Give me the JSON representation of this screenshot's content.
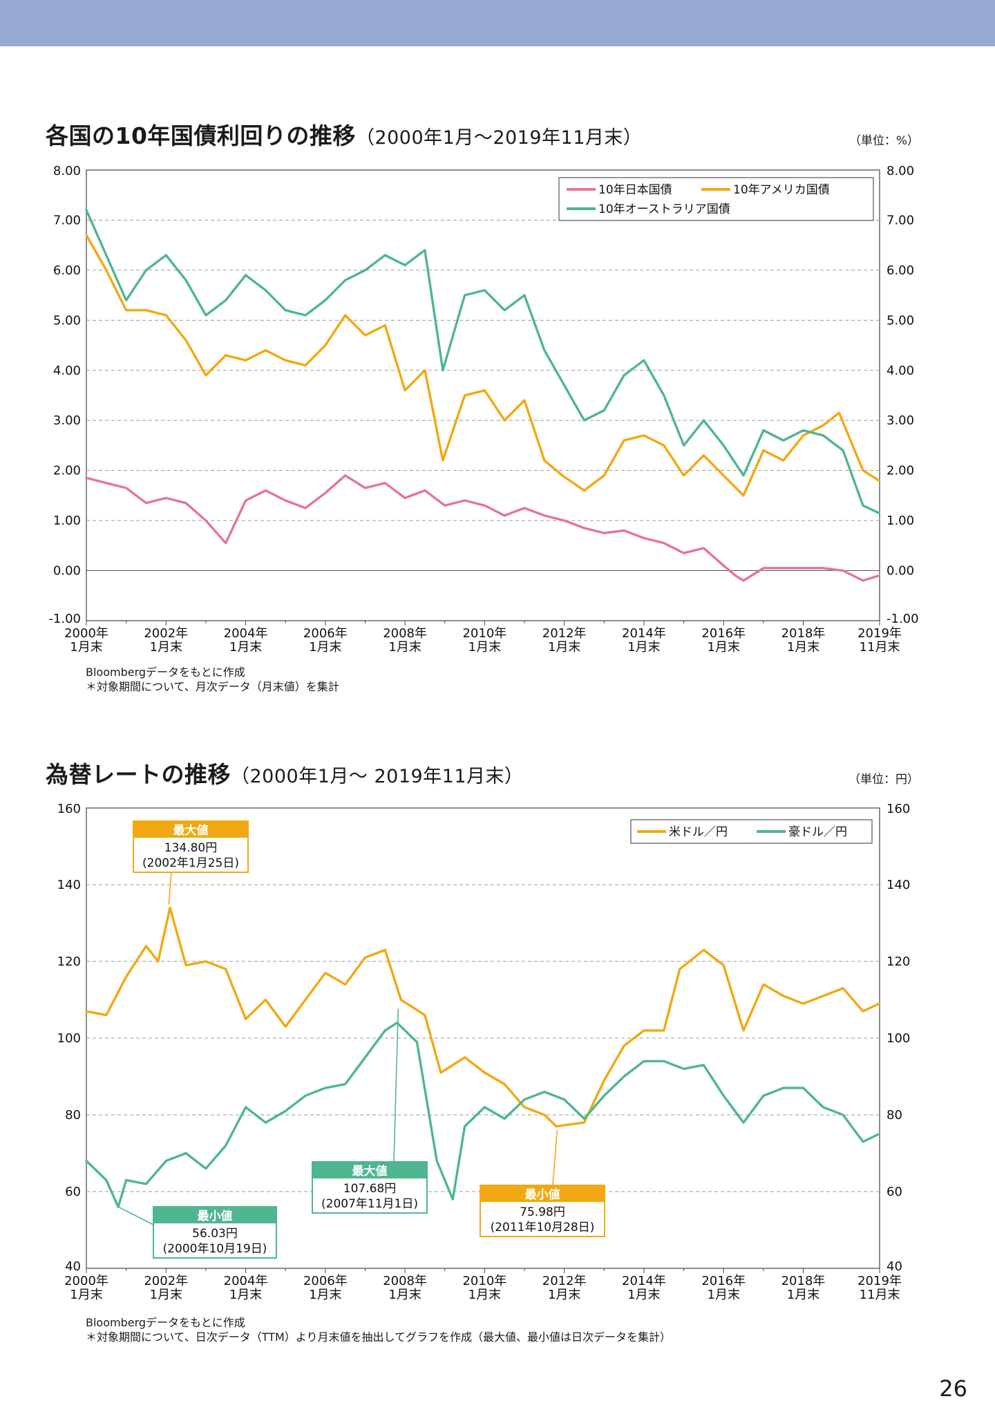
{
  "page_number": "26",
  "colors": {
    "header_band": "#95a9d1",
    "jp": "#e57594",
    "us": "#f2a812",
    "au": "#4fb68f"
  },
  "chart1": {
    "title_main": "各国の10年国債利回りの推移",
    "title_sub": "（2000年1月～2019年11月末）",
    "unit": "（単位：%）",
    "notes": [
      "Bloombergデータをもとに作成",
      "＊対象期間について、月次データ（月末値）を集計"
    ]
  },
  "chart2": {
    "title_main": "為替レートの推移",
    "title_sub": "（2000年1月～ 2019年11月末）",
    "unit": "（単位：円）",
    "notes": [
      "Bloombergデータをもとに作成",
      "＊対象期間について、日次データ（TTM）より月末値を抽出してグラフを作成（最大値、最小値は日次データを集計）"
    ]
  },
  "chart_data": [
    {
      "type": "line",
      "title": "各国の10年国債利回りの推移（2000年1月～2019年11月末）",
      "unit": "%",
      "ylim": [
        -1,
        8
      ],
      "y_ticks": [
        "8.00",
        "7.00",
        "6.00",
        "5.00",
        "4.00",
        "3.00",
        "2.00",
        "1.00",
        "0.00",
        "-1.00"
      ],
      "x_ticks": [
        [
          "2000年",
          "1月末"
        ],
        [
          "2002年",
          "1月末"
        ],
        [
          "2004年",
          "1月末"
        ],
        [
          "2006年",
          "1月末"
        ],
        [
          "2008年",
          "1月末"
        ],
        [
          "2010年",
          "1月末"
        ],
        [
          "2012年",
          "1月末"
        ],
        [
          "2014年",
          "1月末"
        ],
        [
          "2016年",
          "1月末"
        ],
        [
          "2018年",
          "1月末"
        ],
        [
          "2019年",
          "11月末"
        ]
      ],
      "grid": true,
      "legend_position": "top-right",
      "series": [
        {
          "name": "10年日本国債",
          "color": "#e57594",
          "x": [
            2000.0,
            2000.5,
            2001.0,
            2001.5,
            2002.0,
            2002.5,
            2003.0,
            2003.5,
            2004.0,
            2004.5,
            2005.0,
            2005.5,
            2006.0,
            2006.5,
            2007.0,
            2007.5,
            2008.0,
            2008.5,
            2009.0,
            2009.5,
            2010.0,
            2010.5,
            2011.0,
            2011.5,
            2012.0,
            2012.5,
            2013.0,
            2013.5,
            2014.0,
            2014.5,
            2015.0,
            2015.5,
            2016.0,
            2016.3,
            2016.5,
            2017.0,
            2017.5,
            2018.0,
            2018.5,
            2019.0,
            2019.5,
            2019.9
          ],
          "y": [
            1.85,
            1.75,
            1.65,
            1.35,
            1.45,
            1.35,
            1.0,
            0.55,
            1.4,
            1.6,
            1.4,
            1.25,
            1.55,
            1.9,
            1.65,
            1.75,
            1.45,
            1.6,
            1.3,
            1.4,
            1.3,
            1.1,
            1.25,
            1.1,
            1.0,
            0.85,
            0.75,
            0.8,
            0.65,
            0.55,
            0.35,
            0.45,
            0.1,
            -0.1,
            -0.2,
            0.05,
            0.05,
            0.05,
            0.05,
            0.0,
            -0.2,
            -0.1
          ]
        },
        {
          "name": "10年アメリカ国債",
          "color": "#f2a812",
          "x": [
            2000.0,
            2000.5,
            2001.0,
            2001.5,
            2002.0,
            2002.5,
            2003.0,
            2003.5,
            2004.0,
            2004.5,
            2005.0,
            2005.5,
            2006.0,
            2006.5,
            2007.0,
            2007.5,
            2008.0,
            2008.5,
            2008.95,
            2009.5,
            2010.0,
            2010.5,
            2011.0,
            2011.5,
            2011.95,
            2012.5,
            2013.0,
            2013.5,
            2014.0,
            2014.5,
            2015.0,
            2015.5,
            2016.0,
            2016.5,
            2017.0,
            2017.5,
            2018.0,
            2018.5,
            2018.9,
            2019.5,
            2019.9
          ],
          "y": [
            6.7,
            6.0,
            5.2,
            5.2,
            5.1,
            4.6,
            3.9,
            4.3,
            4.2,
            4.4,
            4.2,
            4.1,
            4.5,
            5.1,
            4.7,
            4.9,
            3.6,
            4.0,
            2.2,
            3.5,
            3.6,
            3.0,
            3.4,
            2.2,
            1.9,
            1.6,
            1.9,
            2.6,
            2.7,
            2.5,
            1.9,
            2.3,
            1.9,
            1.5,
            2.4,
            2.2,
            2.7,
            2.9,
            3.15,
            2.0,
            1.8
          ]
        },
        {
          "name": "10年オーストラリア国債",
          "color": "#4fb68f",
          "x": [
            2000.0,
            2000.5,
            2001.0,
            2001.5,
            2002.0,
            2002.5,
            2003.0,
            2003.5,
            2004.0,
            2004.5,
            2005.0,
            2005.5,
            2006.0,
            2006.5,
            2007.0,
            2007.5,
            2008.0,
            2008.5,
            2008.95,
            2009.5,
            2010.0,
            2010.5,
            2011.0,
            2011.5,
            2012.0,
            2012.5,
            2013.0,
            2013.5,
            2014.0,
            2014.5,
            2015.0,
            2015.5,
            2016.0,
            2016.5,
            2017.0,
            2017.5,
            2018.0,
            2018.5,
            2019.0,
            2019.5,
            2019.9
          ],
          "y": [
            7.2,
            6.3,
            5.4,
            6.0,
            6.3,
            5.8,
            5.1,
            5.4,
            5.9,
            5.6,
            5.2,
            5.1,
            5.4,
            5.8,
            6.0,
            6.3,
            6.1,
            6.4,
            4.0,
            5.5,
            5.6,
            5.2,
            5.5,
            4.4,
            3.7,
            3.0,
            3.2,
            3.9,
            4.2,
            3.5,
            2.5,
            3.0,
            2.5,
            1.9,
            2.8,
            2.6,
            2.8,
            2.7,
            2.4,
            1.3,
            1.15
          ]
        }
      ]
    },
    {
      "type": "line",
      "title": "為替レートの推移（2000年1月～ 2019年11月末）",
      "unit": "円",
      "ylim": [
        40,
        160
      ],
      "y_ticks": [
        "160",
        "140",
        "120",
        "100",
        "80",
        "60",
        "40"
      ],
      "x_ticks": [
        [
          "2000年",
          "1月末"
        ],
        [
          "2002年",
          "1月末"
        ],
        [
          "2004年",
          "1月末"
        ],
        [
          "2006年",
          "1月末"
        ],
        [
          "2008年",
          "1月末"
        ],
        [
          "2010年",
          "1月末"
        ],
        [
          "2012年",
          "1月末"
        ],
        [
          "2014年",
          "1月末"
        ],
        [
          "2016年",
          "1月末"
        ],
        [
          "2018年",
          "1月末"
        ],
        [
          "2019年",
          "11月末"
        ]
      ],
      "grid": true,
      "legend_position": "top-right",
      "series": [
        {
          "name": "米ドル／円",
          "color": "#f2a812",
          "x": [
            2000.0,
            2000.5,
            2001.0,
            2001.5,
            2001.8,
            2002.1,
            2002.5,
            2003.0,
            2003.5,
            2004.0,
            2004.5,
            2005.0,
            2005.5,
            2006.0,
            2006.5,
            2007.0,
            2007.5,
            2007.9,
            2008.5,
            2008.9,
            2009.5,
            2010.0,
            2010.5,
            2011.0,
            2011.5,
            2011.8,
            2012.5,
            2013.0,
            2013.5,
            2014.0,
            2014.5,
            2014.9,
            2015.5,
            2016.0,
            2016.5,
            2017.0,
            2017.5,
            2018.0,
            2018.5,
            2019.0,
            2019.5,
            2019.9
          ],
          "y": [
            107,
            106,
            116,
            124,
            120,
            134,
            119,
            120,
            118,
            105,
            110,
            103,
            110,
            117,
            114,
            121,
            123,
            110,
            106,
            91,
            95,
            91,
            88,
            82,
            80,
            77,
            78,
            89,
            98,
            102,
            102,
            118,
            123,
            119,
            102,
            114,
            111,
            109,
            111,
            113,
            107,
            109
          ]
        },
        {
          "name": "豪ドル／円",
          "color": "#4fb68f",
          "x": [
            2000.0,
            2000.5,
            2000.8,
            2001.0,
            2001.5,
            2002.0,
            2002.5,
            2003.0,
            2003.5,
            2004.0,
            2004.5,
            2005.0,
            2005.5,
            2006.0,
            2006.5,
            2007.0,
            2007.5,
            2007.8,
            2008.3,
            2008.8,
            2009.2,
            2009.5,
            2010.0,
            2010.5,
            2011.0,
            2011.5,
            2012.0,
            2012.5,
            2013.0,
            2013.5,
            2014.0,
            2014.5,
            2015.0,
            2015.5,
            2016.0,
            2016.5,
            2017.0,
            2017.5,
            2018.0,
            2018.5,
            2019.0,
            2019.5,
            2019.9
          ],
          "y": [
            68,
            63,
            56,
            63,
            62,
            68,
            70,
            66,
            72,
            82,
            78,
            81,
            85,
            87,
            88,
            95,
            102,
            104,
            99,
            68,
            58,
            77,
            82,
            79,
            84,
            86,
            84,
            79,
            85,
            90,
            94,
            94,
            92,
            93,
            85,
            78,
            85,
            87,
            87,
            82,
            80,
            73,
            75
          ]
        }
      ],
      "annotations": [
        {
          "label": "最大値",
          "value": "134.80円",
          "date": "(2002年1月25日)",
          "series": "米ドル／円",
          "x": 2002.07,
          "y": 134.8
        },
        {
          "label": "最大値",
          "value": "107.68円",
          "date": "(2007年11月1日)",
          "series": "豪ドル／円",
          "x": 2007.83,
          "y": 107.68
        },
        {
          "label": "最小値",
          "value": "56.03円",
          "date": "(2000年10月19日)",
          "series": "豪ドル／円",
          "x": 2000.8,
          "y": 56.03
        },
        {
          "label": "最小値",
          "value": "75.98円",
          "date": "(2011年10月28日)",
          "series": "米ドル／円",
          "x": 2011.82,
          "y": 75.98
        }
      ]
    }
  ]
}
